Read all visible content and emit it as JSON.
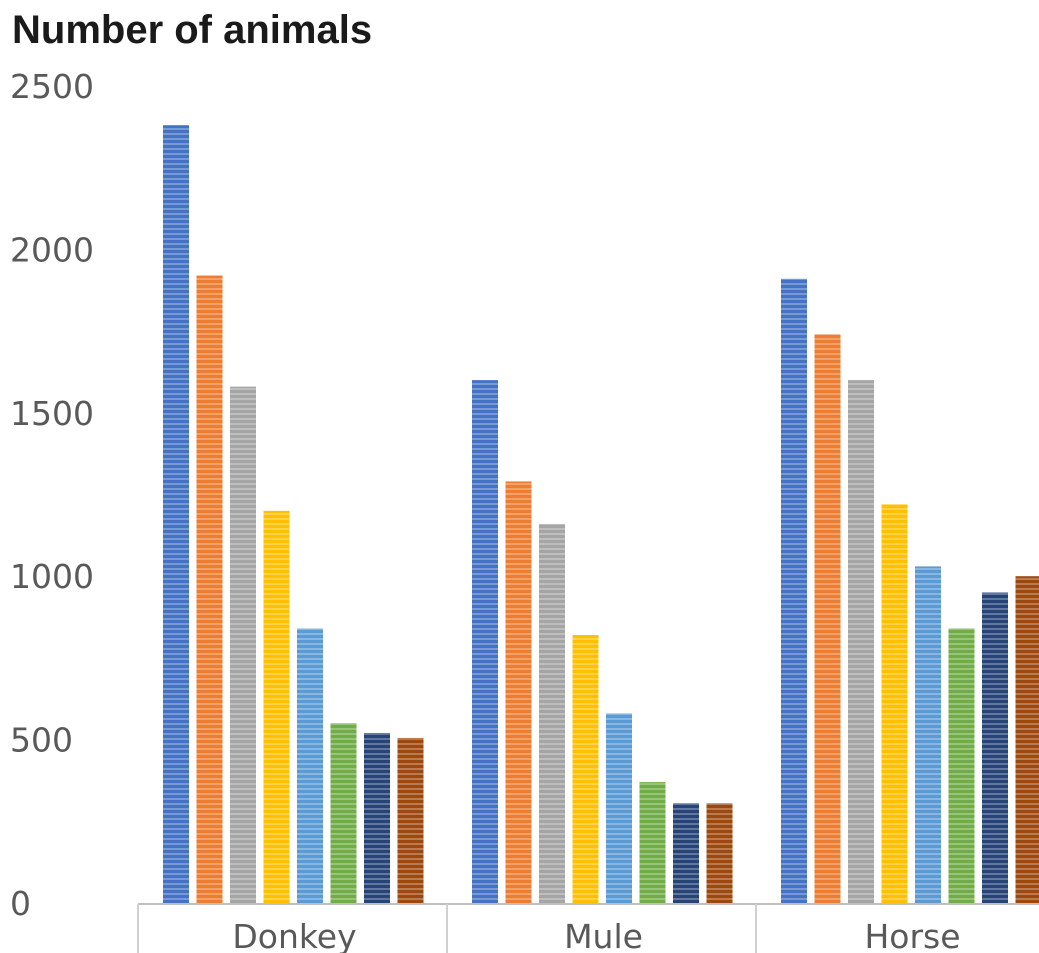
{
  "chart_data": {
    "type": "bar",
    "title": "Number of animals",
    "xlabel": "",
    "ylabel": "",
    "ylim": [
      0,
      2500
    ],
    "yticks": [
      0,
      500,
      1000,
      1500,
      2000,
      2500
    ],
    "yticks_labels": [
      "0",
      "500",
      "1000",
      "1500",
      "2000",
      "2500"
    ],
    "categories": [
      "Donkey",
      "Mule",
      "Horse"
    ],
    "grid": false,
    "legend": "none",
    "series": [
      {
        "color": "#4472C4",
        "values": [
          2380,
          1600,
          1910
        ]
      },
      {
        "color": "#ED7D31",
        "values": [
          1920,
          1290,
          1740
        ]
      },
      {
        "color": "#A5A5A5",
        "values": [
          1580,
          1160,
          1600
        ]
      },
      {
        "color": "#FFC000",
        "values": [
          1200,
          820,
          1220
        ]
      },
      {
        "color": "#5B9BD5",
        "values": [
          840,
          580,
          1030
        ]
      },
      {
        "color": "#70AD47",
        "values": [
          550,
          370,
          840
        ]
      },
      {
        "color": "#264478",
        "values": [
          520,
          305,
          950
        ]
      },
      {
        "color": "#9E480E",
        "values": [
          505,
          305,
          1000
        ]
      }
    ]
  }
}
